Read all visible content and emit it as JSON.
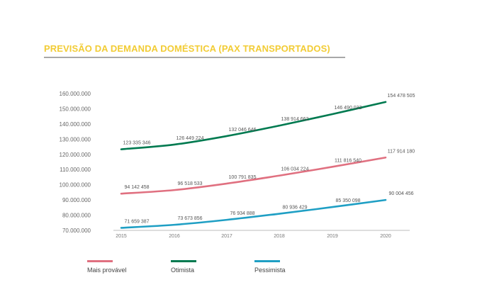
{
  "title": "PREVISÃO DA DEMANDA DOMÉSTICA (PAX TRANSPORTADOS)",
  "chart_data": {
    "type": "line",
    "x": [
      "2015",
      "2016",
      "2017",
      "2018",
      "2019",
      "2020"
    ],
    "ylim": [
      70000000,
      160000000
    ],
    "yticks": [
      160000000,
      150000000,
      140000000,
      130000000,
      120000000,
      110000000,
      100000000,
      90000000,
      80000000,
      70000000
    ],
    "ytick_labels": [
      "160.000.000",
      "150.000.000",
      "140.000.000",
      "130.000.000",
      "120.000.000",
      "110.000.000",
      "100.000.000",
      "90.000.000",
      "80.000.000",
      "70.000.000"
    ],
    "grid": false,
    "legend_position": "bottom",
    "series": [
      {
        "name": "Mais provável",
        "color": "#e07080",
        "values": [
          94142458,
          96518533,
          100791835,
          106034224,
          111816540,
          117914180
        ],
        "labels": [
          "94 142 458",
          "96 518 533",
          "100 791 835",
          "106 034 224",
          "111 816 540",
          "117 914 180"
        ]
      },
      {
        "name": "Otimista",
        "color": "#007a50",
        "values": [
          123335346,
          126449224,
          132046646,
          138914662,
          146490032,
          154478505
        ],
        "labels": [
          "123 335 346",
          "126 449 224",
          "132 046 646",
          "138 914 662",
          "146 490 032",
          "154 478 505"
        ]
      },
      {
        "name": "Pessimista",
        "color": "#1f9fc4",
        "values": [
          71659387,
          73673856,
          76934888,
          80936429,
          85350098,
          90004456
        ],
        "labels": [
          "71 659 387",
          "73 673 856",
          "76 934 888",
          "80 936 429",
          "85 350 098",
          "90 004 456"
        ]
      }
    ]
  }
}
